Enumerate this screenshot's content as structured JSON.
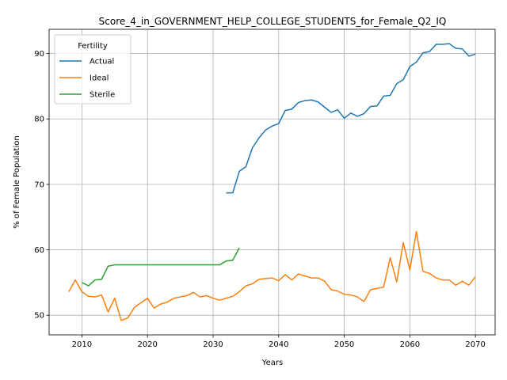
{
  "chart_data": {
    "type": "line",
    "title": "Score_4_in_GOVERNMENT_HELP_COLLEGE_STUDENTS_for_Female_Q2_IQ",
    "xlabel": "Years",
    "ylabel": "% of Female Population",
    "xlim": [
      2005,
      2073
    ],
    "ylim": [
      47,
      93.7
    ],
    "xticks": [
      2010,
      2020,
      2030,
      2040,
      2050,
      2060,
      2070
    ],
    "yticks": [
      50,
      60,
      70,
      80,
      90
    ],
    "grid": true,
    "legend": {
      "title": "Fertility",
      "placement": "top-left"
    },
    "series": [
      {
        "name": "Actual",
        "color": "#1f77b4",
        "x": [
          2032,
          2033,
          2034,
          2035,
          2036,
          2037,
          2038,
          2039,
          2040,
          2041,
          2042,
          2043,
          2044,
          2045,
          2046,
          2047,
          2048,
          2049,
          2050,
          2051,
          2052,
          2053,
          2054,
          2055,
          2056,
          2057,
          2058,
          2059,
          2060,
          2061,
          2062,
          2063,
          2064,
          2065,
          2066,
          2067,
          2068,
          2069,
          2070
        ],
        "values": [
          68.7,
          68.7,
          72.0,
          72.7,
          75.6,
          77.1,
          78.3,
          78.9,
          79.3,
          81.3,
          81.5,
          82.5,
          82.8,
          82.9,
          82.6,
          81.8,
          81.0,
          81.4,
          80.1,
          80.9,
          80.4,
          80.8,
          81.9,
          82.0,
          83.5,
          83.6,
          85.4,
          86.0,
          88.0,
          88.7,
          90.1,
          90.3,
          91.4,
          91.4,
          91.5,
          90.8,
          90.7,
          89.6,
          89.9
        ]
      },
      {
        "name": "Ideal",
        "color": "#ff7f0e",
        "x": [
          2008,
          2009,
          2010,
          2011,
          2012,
          2013,
          2014,
          2015,
          2016,
          2017,
          2018,
          2019,
          2020,
          2021,
          2022,
          2023,
          2024,
          2025,
          2026,
          2027,
          2028,
          2029,
          2030,
          2031,
          2032,
          2033,
          2034,
          2035,
          2036,
          2037,
          2038,
          2039,
          2040,
          2041,
          2042,
          2043,
          2044,
          2045,
          2046,
          2047,
          2048,
          2049,
          2050,
          2051,
          2052,
          2053,
          2054,
          2055,
          2056,
          2057,
          2058,
          2059,
          2060,
          2061,
          2062,
          2063,
          2064,
          2065,
          2066,
          2067,
          2068,
          2069,
          2070
        ],
        "values": [
          53.6,
          55.4,
          53.6,
          52.9,
          52.8,
          53.1,
          50.5,
          52.6,
          49.2,
          49.6,
          51.2,
          51.9,
          52.6,
          51.1,
          51.7,
          52.0,
          52.6,
          52.8,
          53.0,
          53.5,
          52.8,
          53.0,
          52.6,
          52.3,
          52.6,
          52.9,
          53.6,
          54.5,
          54.8,
          55.5,
          55.6,
          55.7,
          55.3,
          56.2,
          55.4,
          56.3,
          56.0,
          55.7,
          55.7,
          55.2,
          53.9,
          53.7,
          53.2,
          53.1,
          52.8,
          52.1,
          53.9,
          54.1,
          54.3,
          58.8,
          55.1,
          61.1,
          56.9,
          62.8,
          56.7,
          56.4,
          55.7,
          55.4,
          55.4,
          54.6,
          55.2,
          54.6,
          55.9
        ]
      },
      {
        "name": "Sterile",
        "color": "#2ca02c",
        "x": [
          2010,
          2011,
          2012,
          2013,
          2014,
          2015,
          2016,
          2017,
          2018,
          2019,
          2020,
          2021,
          2022,
          2023,
          2024,
          2025,
          2026,
          2027,
          2028,
          2029,
          2030,
          2031,
          2032,
          2033,
          2034
        ],
        "values": [
          55.0,
          54.5,
          55.4,
          55.5,
          57.5,
          57.7,
          57.7,
          57.7,
          57.7,
          57.7,
          57.7,
          57.7,
          57.7,
          57.7,
          57.7,
          57.7,
          57.7,
          57.7,
          57.7,
          57.7,
          57.7,
          57.7,
          58.3,
          58.4,
          60.3
        ]
      }
    ]
  }
}
